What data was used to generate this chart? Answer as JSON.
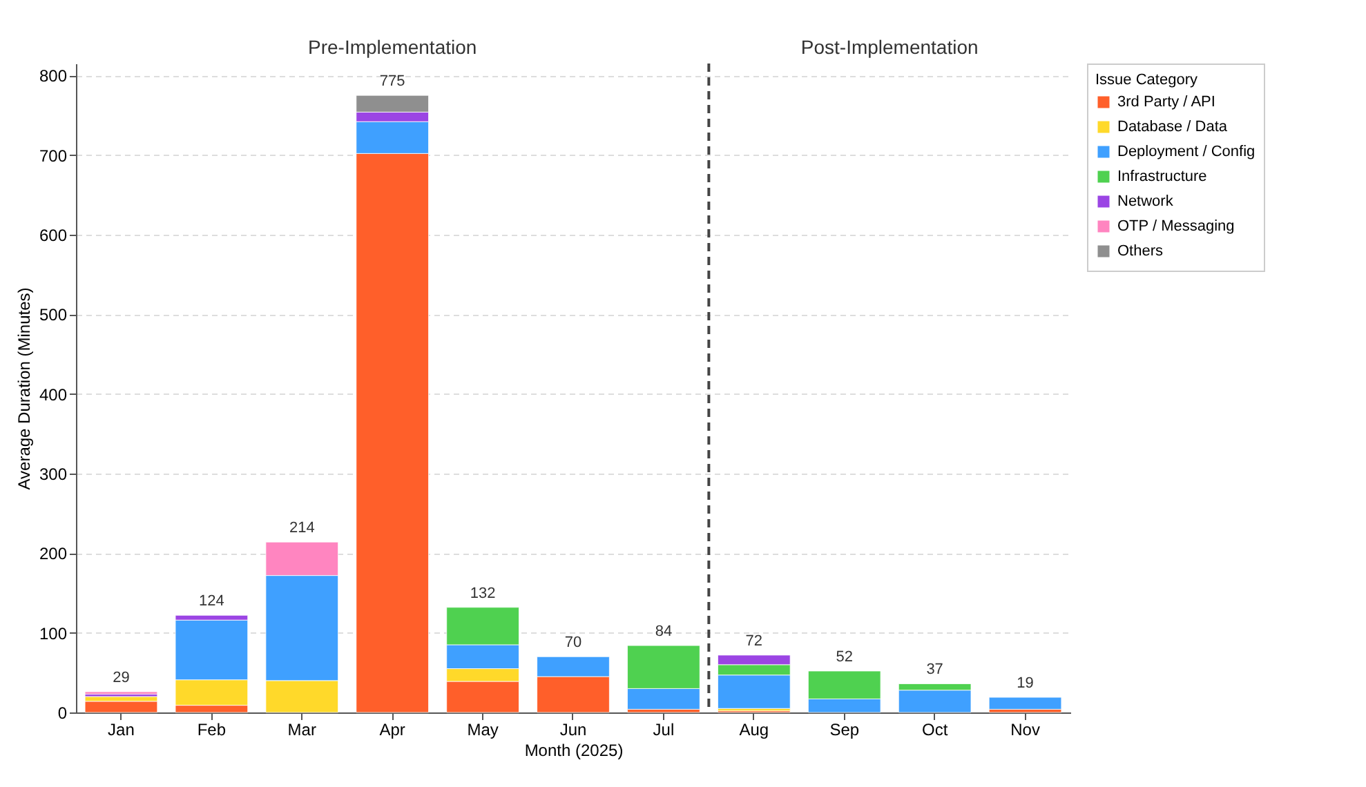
{
  "chart_data": {
    "type": "bar",
    "stacked": true,
    "xlabel": "Month (2025)",
    "ylabel": "Average Duration (Minutes)",
    "legend_title": "Issue Category",
    "legend": "right",
    "grid": "y",
    "categories": [
      "Jan",
      "Feb",
      "Mar",
      "Apr",
      "May",
      "Jun",
      "Jul",
      "Aug",
      "Sep",
      "Oct",
      "Nov"
    ],
    "ylim": [
      0,
      815
    ],
    "yticks": [
      0,
      100,
      200,
      300,
      400,
      500,
      600,
      700,
      800
    ],
    "series": [
      {
        "name": "3rd Party / API",
        "color": "#ff5f2a",
        "values": [
          14,
          9,
          null,
          702,
          39,
          45,
          4,
          2,
          null,
          null,
          4
        ]
      },
      {
        "name": "Database / Data",
        "color": "#ffd92a",
        "values": [
          6,
          32,
          40,
          null,
          16,
          null,
          null,
          3,
          null,
          null,
          null
        ]
      },
      {
        "name": "Deployment / Config",
        "color": "#3fa0ff",
        "values": [
          null,
          75,
          132,
          40,
          30,
          25,
          26,
          42,
          17,
          28,
          15
        ]
      },
      {
        "name": "Infrastructure",
        "color": "#4fd150",
        "values": [
          null,
          null,
          null,
          null,
          47,
          null,
          54,
          13,
          35,
          8,
          null
        ]
      },
      {
        "name": "Network",
        "color": "#9b45e4",
        "values": [
          3,
          6,
          null,
          12,
          null,
          null,
          null,
          12,
          null,
          null,
          null
        ]
      },
      {
        "name": "OTP / Messaging",
        "color": "#ff85c0",
        "values": [
          3,
          null,
          42,
          null,
          null,
          null,
          null,
          null,
          null,
          null,
          null
        ]
      },
      {
        "name": "Others",
        "color": "#8f8f8f",
        "values": [
          null,
          null,
          null,
          21,
          null,
          null,
          null,
          null,
          null,
          null,
          null
        ]
      }
    ],
    "totals": [
      "29",
      "124",
      "214",
      "775",
      "132",
      "70",
      "84",
      "72",
      "52",
      "37",
      "19"
    ],
    "ref_lines": [
      {
        "axis": "x",
        "value": "Aug",
        "line_style": "dashed",
        "color": "#444444"
      }
    ],
    "annotations": [
      "Pre-Implementation",
      "Post-Implementation"
    ]
  }
}
